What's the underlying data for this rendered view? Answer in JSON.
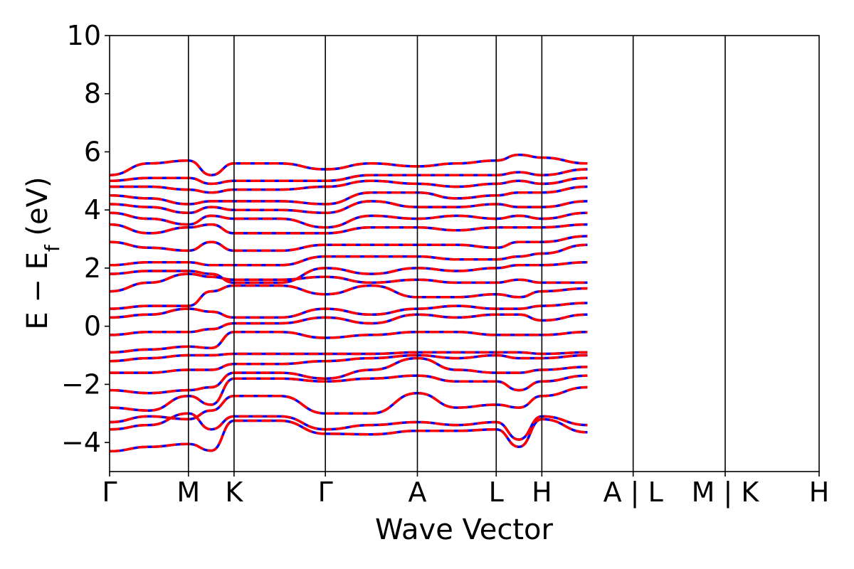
{
  "chart_data": {
    "type": "line",
    "title": "",
    "xlabel": "Wave Vector",
    "ylabel": {
      "main": "E − E",
      "subscript": "f",
      "unit": " (eV)"
    },
    "ylim": [
      -5,
      10
    ],
    "yticks": [
      -4,
      -2,
      0,
      2,
      4,
      6,
      8,
      10
    ],
    "ytick_labels": [
      "−4",
      "−2",
      "0",
      "2",
      "4",
      "6",
      "8",
      "10"
    ],
    "grid": false,
    "legend": "none",
    "kpoints": [
      {
        "label": "Γ",
        "x": 0.0
      },
      {
        "label": "M",
        "x": 0.1111
      },
      {
        "label": "K",
        "x": 0.1754
      },
      {
        "label": "Γ",
        "x": 0.3041
      },
      {
        "label": "A",
        "x": 0.4338
      },
      {
        "label": "L",
        "x": 0.5449
      },
      {
        "label": "H",
        "x": 0.6092
      },
      {
        "label": "A | L",
        "x": 0.7379
      },
      {
        "label": "M | K",
        "x": 0.8676
      },
      {
        "label": "H",
        "x": 1.0
      }
    ],
    "colors": {
      "series_a": "#0000ff",
      "series_b": "#ff0000",
      "axis": "#000000"
    },
    "bands": [
      [
        -4.3,
        -4.15,
        -4.05,
        -4.28,
        -3.25,
        -3.25,
        -3.7,
        -3.72,
        -3.6,
        -3.6,
        -3.55,
        -4.15,
        -3.2,
        -3.65
      ],
      [
        -3.55,
        -3.4,
        -3.0,
        -3.55,
        -3.1,
        -3.1,
        -3.55,
        -3.4,
        -3.3,
        -3.4,
        -3.3,
        -3.9,
        -3.1,
        -3.4
      ],
      [
        -3.3,
        -3.1,
        -3.2,
        -2.9,
        -2.4,
        -2.4,
        -3.0,
        -3.0,
        -2.3,
        -2.8,
        -2.7,
        -2.8,
        -2.4,
        -2.1
      ],
      [
        -2.8,
        -2.9,
        -2.4,
        -2.7,
        -1.8,
        -1.8,
        -1.9,
        -1.8,
        -1.7,
        -1.9,
        -1.9,
        -2.2,
        -1.9,
        -1.7
      ],
      [
        -2.2,
        -2.3,
        -2.2,
        -2.1,
        -1.6,
        -1.6,
        -1.8,
        -1.5,
        -1.1,
        -1.5,
        -1.6,
        -1.6,
        -1.5,
        -1.4
      ],
      [
        -1.6,
        -1.6,
        -1.5,
        -1.5,
        -1.3,
        -1.3,
        -1.2,
        -1.1,
        -1.0,
        -1.1,
        -1.0,
        -1.1,
        -1.1,
        -1.0
      ],
      [
        -1.2,
        -1.1,
        -1.0,
        -1.0,
        -0.95,
        -0.95,
        -0.95,
        -0.95,
        -0.9,
        -0.9,
        -0.9,
        -0.9,
        -0.95,
        -0.9
      ],
      [
        -0.9,
        -0.8,
        -0.7,
        -0.75,
        -0.2,
        -0.2,
        -0.4,
        -0.3,
        -0.2,
        -0.2,
        -0.3,
        -0.3,
        -0.3,
        -0.2
      ],
      [
        -0.3,
        -0.2,
        -0.2,
        -0.1,
        0.1,
        0.1,
        0.3,
        0.1,
        0.4,
        0.3,
        0.4,
        0.4,
        0.2,
        0.4
      ],
      [
        0.3,
        0.4,
        0.6,
        0.5,
        0.3,
        0.3,
        0.6,
        0.4,
        0.6,
        0.7,
        0.6,
        0.6,
        0.7,
        0.8
      ],
      [
        0.6,
        0.7,
        0.7,
        1.2,
        1.4,
        1.4,
        1.1,
        1.4,
        1.0,
        1.0,
        1.1,
        1.0,
        1.2,
        1.3
      ],
      [
        1.2,
        1.5,
        1.8,
        1.7,
        1.6,
        1.6,
        1.7,
        1.5,
        1.6,
        1.5,
        1.5,
        1.6,
        1.5,
        1.5
      ],
      [
        1.8,
        1.9,
        1.9,
        1.8,
        1.5,
        1.5,
        2.0,
        1.8,
        2.0,
        1.9,
        2.0,
        2.1,
        2.1,
        2.2
      ],
      [
        2.1,
        2.2,
        2.2,
        2.1,
        2.1,
        2.1,
        2.4,
        2.4,
        2.4,
        2.3,
        2.3,
        2.4,
        2.5,
        2.8
      ],
      [
        2.9,
        2.7,
        2.6,
        2.9,
        2.6,
        2.6,
        2.8,
        2.8,
        2.8,
        2.8,
        2.7,
        2.9,
        2.9,
        3.1
      ],
      [
        3.5,
        3.2,
        3.4,
        3.5,
        3.2,
        3.2,
        3.2,
        3.4,
        3.4,
        3.3,
        3.4,
        3.4,
        3.4,
        3.5
      ],
      [
        3.9,
        3.7,
        3.5,
        3.8,
        3.7,
        3.7,
        3.4,
        3.8,
        3.7,
        3.8,
        3.7,
        3.8,
        3.7,
        3.9
      ],
      [
        4.2,
        4.1,
        3.9,
        4.1,
        4.0,
        4.0,
        3.9,
        4.3,
        4.1,
        4.1,
        4.2,
        4.1,
        4.1,
        4.3
      ],
      [
        4.5,
        4.4,
        4.2,
        4.3,
        4.3,
        4.3,
        4.2,
        4.6,
        4.6,
        4.4,
        4.5,
        4.6,
        4.6,
        4.8
      ],
      [
        4.8,
        4.8,
        4.7,
        4.6,
        4.7,
        4.7,
        4.8,
        5.0,
        4.9,
        4.8,
        4.9,
        5.0,
        4.9,
        5.1
      ],
      [
        5.0,
        5.1,
        5.1,
        4.9,
        5.0,
        5.0,
        5.0,
        5.2,
        5.2,
        5.2,
        5.2,
        5.3,
        5.2,
        5.4
      ],
      [
        5.2,
        5.6,
        5.7,
        5.2,
        5.6,
        5.6,
        5.4,
        5.6,
        5.5,
        5.6,
        5.7,
        5.9,
        5.8,
        5.6
      ]
    ]
  }
}
